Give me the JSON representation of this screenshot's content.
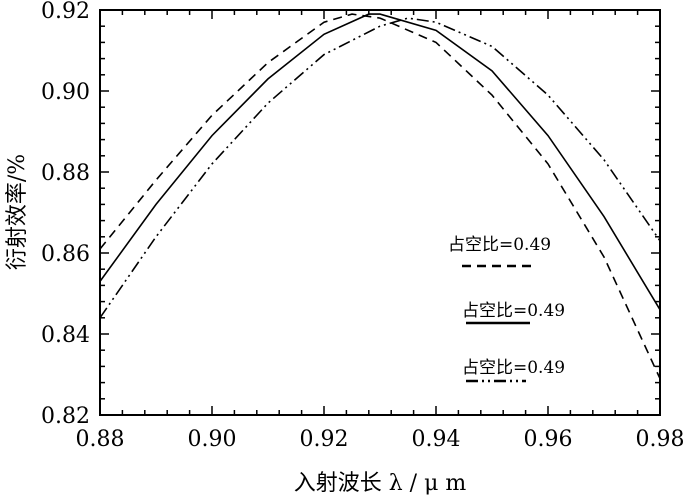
{
  "chart_data": {
    "type": "line",
    "title": "",
    "xlabel": "入射波长 λ / μ m",
    "ylabel": "衍射效率/%",
    "xlim": [
      0.88,
      0.98
    ],
    "ylim": [
      0.82,
      0.92
    ],
    "x_ticks": [
      "0.88",
      "0.90",
      "0.92",
      "0.94",
      "0.96",
      "0.98"
    ],
    "y_ticks": [
      "0.92",
      "0.90",
      "0.88",
      "0.86",
      "0.84",
      "0.82"
    ],
    "grid": false,
    "legend_position": "right",
    "series": [
      {
        "name": "占空比=0.49",
        "style": "dashed",
        "color": "#000000",
        "x": [
          0.88,
          0.89,
          0.9,
          0.91,
          0.92,
          0.925,
          0.93,
          0.94,
          0.95,
          0.96,
          0.97,
          0.98
        ],
        "y": [
          0.861,
          0.878,
          0.894,
          0.907,
          0.917,
          0.919,
          0.918,
          0.912,
          0.899,
          0.882,
          0.859,
          0.829
        ]
      },
      {
        "name": "占空比=0.49",
        "style": "solid",
        "color": "#000000",
        "x": [
          0.88,
          0.89,
          0.9,
          0.91,
          0.92,
          0.928,
          0.93,
          0.94,
          0.95,
          0.96,
          0.97,
          0.98
        ],
        "y": [
          0.853,
          0.872,
          0.889,
          0.903,
          0.914,
          0.919,
          0.919,
          0.915,
          0.905,
          0.889,
          0.869,
          0.846
        ]
      },
      {
        "name": "占空比=0.49",
        "style": "dash-dot",
        "color": "#000000",
        "x": [
          0.88,
          0.89,
          0.9,
          0.91,
          0.92,
          0.93,
          0.935,
          0.94,
          0.95,
          0.96,
          0.97,
          0.98
        ],
        "y": [
          0.844,
          0.864,
          0.882,
          0.897,
          0.909,
          0.916,
          0.918,
          0.917,
          0.911,
          0.899,
          0.883,
          0.863
        ]
      }
    ]
  }
}
